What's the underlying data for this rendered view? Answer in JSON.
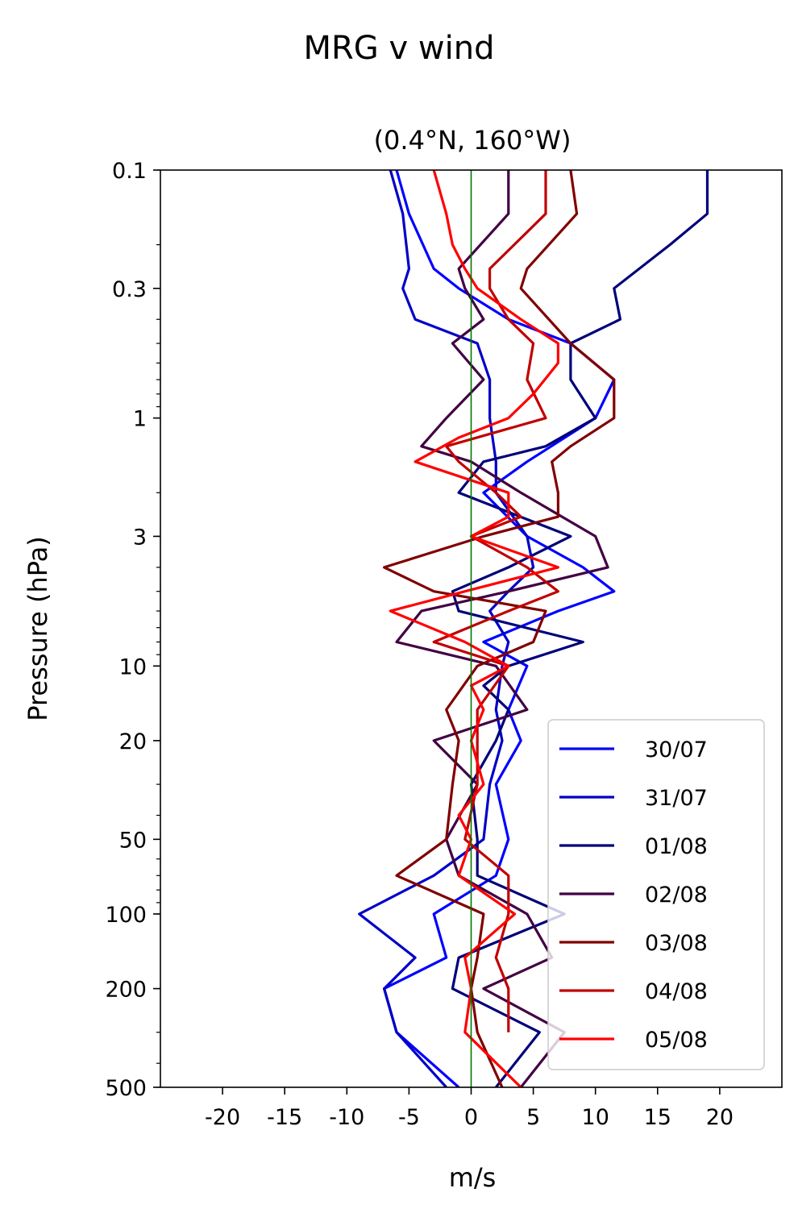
{
  "chart_data": {
    "type": "line",
    "title": "MRG v wind",
    "subtitle": "(0.4°N, 160°W)",
    "xlabel": "m/s",
    "ylabel": "Pressure (hPa)",
    "xlim": [
      -25,
      25
    ],
    "ylim": [
      500,
      0.1
    ],
    "yscale": "log",
    "x_ticks": [
      -20,
      -15,
      -10,
      -5,
      0,
      5,
      10,
      15,
      20
    ],
    "x_tick_labels": [
      "-20",
      "-15",
      "-10",
      "-5",
      "0",
      "5",
      "10",
      "15",
      "20"
    ],
    "y_ticks": [
      0.1,
      0.3,
      1,
      3,
      10,
      20,
      50,
      100,
      200,
      500
    ],
    "y_tick_labels": [
      "0.1",
      "0.3",
      "1",
      "3",
      "10",
      "20",
      "50",
      "100",
      "200",
      "500"
    ],
    "zero_line": {
      "x": 0,
      "color": "#007700"
    },
    "legend_position": "lower-right",
    "grid": false,
    "series": [
      {
        "name": "30/07",
        "color": "#0000ff",
        "p": [
          0.1,
          0.15,
          0.25,
          0.3,
          0.4,
          0.5,
          0.7,
          1.0,
          1.5,
          2.0,
          3.0,
          4.0,
          5.0,
          6.0,
          8.0,
          10.0,
          15.0,
          20.0,
          30.0,
          50.0,
          70.0,
          100.0,
          150.0,
          200.0,
          300.0,
          500.0
        ],
        "v": [
          -6.0,
          -5.0,
          -3.0,
          -1.0,
          3.0,
          8.0,
          11.5,
          10.0,
          4.5,
          1.0,
          4.5,
          9.0,
          11.5,
          7.0,
          1.0,
          4.5,
          3.0,
          4.0,
          2.0,
          3.0,
          2.0,
          -3.0,
          -2.0,
          -7.0,
          -6.0,
          -1.0
        ]
      },
      {
        "name": "31/07",
        "color": "#0000c8",
        "p": [
          0.1,
          0.15,
          0.25,
          0.3,
          0.4,
          0.5,
          0.7,
          1.0,
          1.5,
          2.0,
          3.0,
          4.0,
          5.0,
          6.0,
          8.0,
          10.0,
          15.0,
          20.0,
          30.0,
          50.0,
          70.0,
          100.0,
          150.0,
          200.0,
          300.0,
          500.0
        ],
        "v": [
          -6.5,
          -5.5,
          -5.0,
          -5.5,
          -4.5,
          0.5,
          1.5,
          1.5,
          2.0,
          2.0,
          4.5,
          5.0,
          3.0,
          1.5,
          3.0,
          2.5,
          2.0,
          2.5,
          1.5,
          1.0,
          -3.0,
          -9.0,
          -4.5,
          -7.0,
          -6.0,
          -2.0
        ]
      },
      {
        "name": "01/08",
        "color": "#00007a",
        "p": [
          0.1,
          0.15,
          0.2,
          0.3,
          0.4,
          0.5,
          0.7,
          1.0,
          1.3,
          1.5,
          2.0,
          3.0,
          4.0,
          5.0,
          6.0,
          8.0,
          10.0,
          12.0,
          15.0,
          20.0,
          30.0,
          50.0,
          70.0,
          100.0,
          150.0,
          200.0,
          300.0,
          500.0
        ],
        "v": [
          19.0,
          19.0,
          16.0,
          11.5,
          12.0,
          8.0,
          8.0,
          10.0,
          6.0,
          1.0,
          -1.0,
          8.0,
          3.0,
          -1.5,
          -1.0,
          9.0,
          3.0,
          1.0,
          3.0,
          2.0,
          0.0,
          0.5,
          0.5,
          7.5,
          -1.0,
          -1.5,
          5.5,
          2.0
        ]
      },
      {
        "name": "02/08",
        "color": "#420042",
        "p": [
          0.1,
          0.15,
          0.25,
          0.3,
          0.4,
          0.5,
          0.7,
          1.0,
          1.3,
          1.5,
          2.0,
          3.0,
          4.0,
          5.0,
          6.0,
          8.0,
          10.0,
          15.0,
          20.0,
          30.0,
          50.0,
          70.0,
          100.0,
          150.0,
          200.0,
          300.0,
          500.0
        ],
        "v": [
          3.0,
          3.0,
          -1.0,
          -0.5,
          1.0,
          -1.5,
          1.0,
          -2.0,
          -4.0,
          0.0,
          4.0,
          10.0,
          11.0,
          3.0,
          -4.0,
          -6.0,
          2.0,
          4.5,
          -3.0,
          0.5,
          -2.0,
          -1.0,
          4.5,
          6.5,
          1.0,
          7.5,
          4.0
        ]
      },
      {
        "name": "03/08",
        "color": "#800000",
        "p": [
          0.1,
          0.15,
          0.25,
          0.3,
          0.5,
          0.7,
          1.0,
          1.3,
          1.5,
          2.0,
          2.5,
          3.0,
          4.0,
          5.0,
          6.0,
          8.0,
          10.0,
          15.0,
          20.0,
          30.0,
          50.0,
          70.0,
          100.0,
          150.0,
          200.0,
          300.0,
          500.0
        ],
        "v": [
          8.0,
          8.5,
          4.5,
          4.0,
          8.0,
          11.5,
          11.5,
          8.0,
          6.5,
          7.0,
          7.0,
          1.0,
          -7.0,
          -3.0,
          6.0,
          5.0,
          0.5,
          -2.0,
          -1.0,
          -1.5,
          -2.0,
          -6.0,
          1.0,
          0.5,
          0.0,
          0.5,
          2.5
        ]
      },
      {
        "name": "04/08",
        "color": "#c00000",
        "p": [
          0.1,
          0.15,
          0.25,
          0.3,
          0.4,
          0.5,
          0.7,
          1.0,
          1.3,
          1.5,
          2.0,
          2.5,
          3.0,
          4.0,
          5.0,
          6.0,
          8.0,
          10.0,
          15.0,
          20.0,
          30.0,
          50.0,
          70.0,
          100.0,
          150.0,
          200.0,
          300.0,
          500.0
        ],
        "v": [
          6.0,
          6.0,
          1.5,
          1.5,
          3.0,
          5.0,
          4.5,
          6.0,
          -2.0,
          -1.0,
          2.0,
          4.0,
          0.0,
          4.5,
          7.0,
          3.0,
          -3.0,
          3.0,
          0.5,
          0.5,
          0.5,
          -0.5,
          3.0,
          3.0,
          2.0,
          3.0,
          3.0
        ]
      },
      {
        "name": "05/08",
        "color": "#ff0000",
        "p": [
          0.1,
          0.15,
          0.2,
          0.25,
          0.3,
          0.4,
          0.5,
          0.6,
          0.8,
          1.0,
          1.2,
          1.5,
          2.0,
          2.5,
          3.0,
          4.0,
          5.0,
          6.0,
          8.0,
          10.0,
          12.0,
          15.0,
          20.0,
          30.0,
          40.0,
          50.0,
          70.0,
          100.0,
          150.0,
          200.0,
          300.0,
          500.0
        ],
        "v": [
          -3.0,
          -2.0,
          -1.5,
          -0.5,
          0.5,
          4.0,
          7.0,
          7.0,
          5.0,
          3.0,
          -1.0,
          -4.5,
          3.0,
          3.0,
          0.0,
          7.0,
          -0.5,
          -6.5,
          -0.5,
          3.0,
          0.0,
          1.0,
          0.0,
          1.0,
          -1.0,
          0.0,
          -1.0,
          3.5,
          -0.5,
          0.0,
          -0.5,
          4.0
        ]
      }
    ]
  }
}
